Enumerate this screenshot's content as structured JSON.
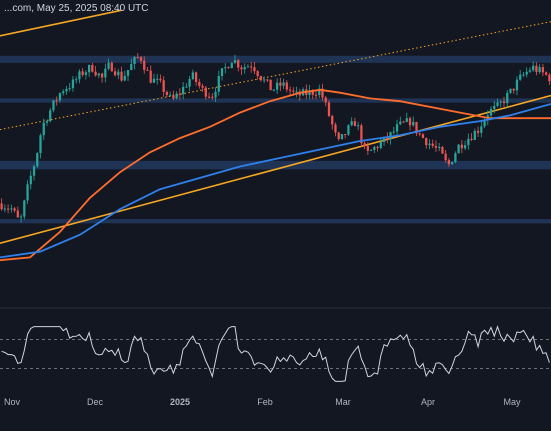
{
  "header": {
    "text": "...com, May 25, 2025 08:40 UTC"
  },
  "colors": {
    "background": "#131722",
    "zone": "#2a4a80",
    "up": "#26a69a",
    "down": "#ef5350",
    "ma_orange": "#ff6d2d",
    "ma_blue": "#2f80ed",
    "trend": "#f5a623",
    "rsi": "#d1d4dc",
    "guide": "#8a8f99",
    "pane_separator": "#2a2e39"
  },
  "chart_data": [
    {
      "type": "candlestick",
      "pane": "price",
      "title": "",
      "x_ticks": [
        {
          "label": "Nov",
          "bold": false
        },
        {
          "label": "Dec",
          "bold": false
        },
        {
          "label": "2025",
          "bold": true
        },
        {
          "label": "Feb",
          "bold": false
        },
        {
          "label": "Mar",
          "bold": false
        },
        {
          "label": "Apr",
          "bold": false
        },
        {
          "label": "May",
          "bold": false
        }
      ],
      "y_axis_visible": false,
      "grid": false,
      "horizontal_zones": [
        {
          "name": "upper-resistance",
          "from": 0.835,
          "to": 0.86
        },
        {
          "name": "mid-zone",
          "from": 0.695,
          "to": 0.71
        },
        {
          "name": "lower-zone",
          "from": 0.46,
          "to": 0.49
        },
        {
          "name": "bottom-zone",
          "from": 0.27,
          "to": 0.285
        }
      ],
      "trendlines": [
        {
          "name": "upper-ascending-dotted",
          "style": "dotted",
          "color": "orange",
          "start": [
            0,
            0.6
          ],
          "end": [
            1,
            0.98
          ]
        },
        {
          "name": "lower-ascending-support",
          "style": "solid",
          "color": "orange",
          "start": [
            0,
            0.2
          ],
          "end": [
            1,
            0.72
          ]
        },
        {
          "name": "top-left-line",
          "style": "solid",
          "color": "orange",
          "start": [
            0,
            0.93
          ],
          "end": [
            0.22,
            1.02
          ]
        }
      ],
      "moving_averages": [
        {
          "name": "orange-ma",
          "color": "orange"
        },
        {
          "name": "blue-ma",
          "color": "blue"
        }
      ],
      "candles_count": 170
    },
    {
      "type": "line",
      "pane": "oscillator",
      "series": [
        {
          "name": "",
          "color": "white"
        }
      ],
      "guides": [
        70,
        30
      ],
      "y_axis_visible": false
    }
  ]
}
